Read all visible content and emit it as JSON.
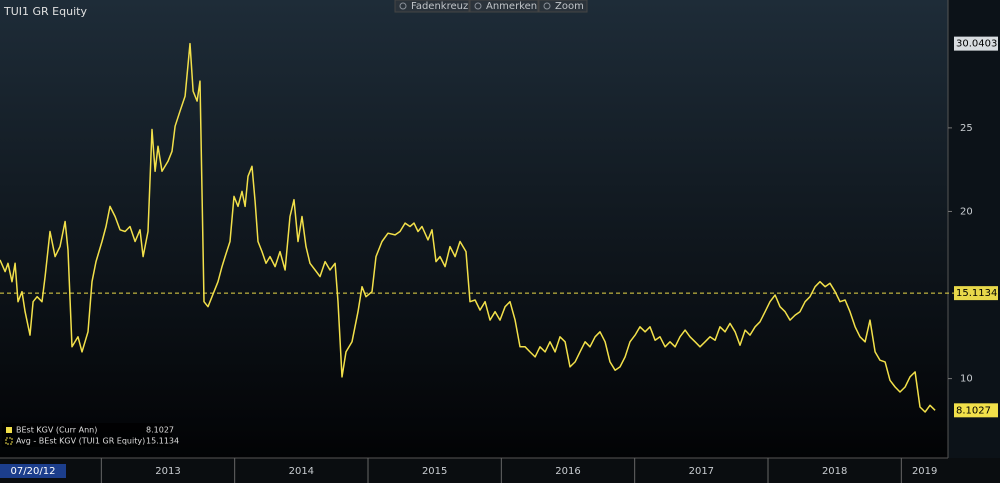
{
  "chart_data": {
    "type": "line",
    "title": "TUI1 GR Equity",
    "toolbar": [
      "Fadenkreuz",
      "Anmerken",
      "Zoom"
    ],
    "start_date": "07/20/12",
    "series": [
      {
        "name": "BEst KGV (Curr Ann)",
        "color": "#f2e04a",
        "x": [
          2012.24,
          2012.278,
          2012.3,
          2012.33,
          2012.353,
          2012.375,
          2012.405,
          2012.428,
          2012.465,
          2012.488,
          2012.518,
          2012.555,
          2012.578,
          2012.615,
          2012.653,
          2012.69,
          2012.728,
          2012.75,
          2012.78,
          2012.825,
          2012.855,
          2012.9,
          2012.93,
          2012.96,
          2013.005,
          2013.035,
          2013.065,
          2013.103,
          2013.14,
          2013.178,
          2013.215,
          2013.253,
          2013.29,
          2013.313,
          2013.35,
          2013.38,
          2013.403,
          2013.425,
          2013.455,
          2013.5,
          2013.53,
          2013.553,
          2013.59,
          2013.628,
          2013.665,
          2013.688,
          2013.718,
          2013.74,
          2013.77,
          2013.8,
          2013.83,
          2013.875,
          2013.905,
          2013.928,
          2013.965,
          2013.995,
          2014.025,
          2014.055,
          2014.078,
          2014.1,
          2014.13,
          2014.153,
          2014.175,
          2014.205,
          2014.235,
          2014.265,
          2014.303,
          2014.34,
          2014.378,
          2014.415,
          2014.445,
          2014.475,
          2014.505,
          2014.535,
          2014.565,
          2014.603,
          2014.64,
          2014.678,
          2014.715,
          2014.753,
          2014.775,
          2014.805,
          2014.835,
          2014.88,
          2014.925,
          2014.955,
          2014.985,
          2015.03,
          2015.06,
          2015.105,
          2015.15,
          2015.203,
          2015.24,
          2015.278,
          2015.315,
          2015.345,
          2015.375,
          2015.405,
          2015.45,
          2015.48,
          2015.51,
          2015.54,
          2015.578,
          2015.615,
          2015.653,
          2015.69,
          2015.735,
          2015.765,
          2015.803,
          2015.84,
          2015.878,
          2015.915,
          2015.953,
          2015.99,
          2016.028,
          2016.065,
          2016.103,
          2016.14,
          2016.178,
          2016.215,
          2016.253,
          2016.29,
          2016.328,
          2016.365,
          2016.403,
          2016.44,
          2016.478,
          2016.515,
          2016.553,
          2016.59,
          2016.628,
          2016.665,
          2016.703,
          2016.74,
          2016.778,
          2016.815,
          2016.853,
          2016.89,
          2016.928,
          2016.965,
          2017.003,
          2017.04,
          2017.078,
          2017.115,
          2017.153,
          2017.19,
          2017.228,
          2017.265,
          2017.303,
          2017.34,
          2017.378,
          2017.415,
          2017.453,
          2017.49,
          2017.528,
          2017.565,
          2017.603,
          2017.64,
          2017.678,
          2017.715,
          2017.753,
          2017.79,
          2017.828,
          2017.865,
          2017.903,
          2017.94,
          2017.978,
          2018.015,
          2018.053,
          2018.09,
          2018.128,
          2018.165,
          2018.203,
          2018.24,
          2018.278,
          2018.315,
          2018.353,
          2018.39,
          2018.428,
          2018.465,
          2018.503,
          2018.54,
          2018.578,
          2018.615,
          2018.653,
          2018.69,
          2018.728,
          2018.765,
          2018.803,
          2018.84,
          2018.878,
          2018.915,
          2018.953,
          2018.99,
          2019.028,
          2019.065,
          2019.103,
          2019.14,
          2019.178,
          2019.215,
          2019.253
        ],
        "values": [
          17.1,
          16.4,
          16.9,
          15.8,
          16.9,
          14.6,
          15.2,
          14.0,
          12.6,
          14.6,
          14.9,
          14.6,
          16.1,
          18.8,
          17.3,
          17.9,
          19.4,
          17.7,
          11.9,
          12.5,
          11.6,
          12.8,
          15.8,
          17.0,
          18.2,
          19.1,
          20.3,
          19.7,
          18.9,
          18.8,
          19.1,
          18.2,
          18.9,
          17.3,
          18.8,
          24.9,
          22.4,
          23.9,
          22.4,
          23.0,
          23.6,
          25.1,
          26.0,
          26.9,
          30.0403,
          27.2,
          26.6,
          27.8,
          14.6,
          14.3,
          14.9,
          15.8,
          16.7,
          17.3,
          18.2,
          20.9,
          20.3,
          21.2,
          20.3,
          22.1,
          22.7,
          20.6,
          18.2,
          17.6,
          16.9,
          17.3,
          16.7,
          17.6,
          16.5,
          19.7,
          20.7,
          18.2,
          19.7,
          17.9,
          16.9,
          16.5,
          16.1,
          17.0,
          16.5,
          16.9,
          14.6,
          10.1,
          11.6,
          12.2,
          14.0,
          15.5,
          14.9,
          15.2,
          17.3,
          18.2,
          18.7,
          18.6,
          18.8,
          19.3,
          19.1,
          19.3,
          18.8,
          19.1,
          18.3,
          18.9,
          17.0,
          17.3,
          16.7,
          17.9,
          17.3,
          18.2,
          17.6,
          14.6,
          14.7,
          14.1,
          14.6,
          13.5,
          14.0,
          13.5,
          14.3,
          14.6,
          13.5,
          11.9,
          11.9,
          11.6,
          11.3,
          11.9,
          11.6,
          12.2,
          11.6,
          12.5,
          12.2,
          10.7,
          11.0,
          11.6,
          12.2,
          11.9,
          12.5,
          12.8,
          12.2,
          11.0,
          10.5,
          10.7,
          11.3,
          12.2,
          12.6,
          13.1,
          12.8,
          13.1,
          12.3,
          12.5,
          11.9,
          12.2,
          11.9,
          12.5,
          12.9,
          12.5,
          12.2,
          11.9,
          12.2,
          12.5,
          12.3,
          13.1,
          12.8,
          13.3,
          12.8,
          12.0,
          12.9,
          12.6,
          13.1,
          13.4,
          14.0,
          14.6,
          15.0,
          14.3,
          14.0,
          13.5,
          13.8,
          14.0,
          14.6,
          14.9,
          15.5,
          15.8,
          15.5,
          15.7,
          15.2,
          14.6,
          14.7,
          14.0,
          13.1,
          12.5,
          12.2,
          13.5,
          11.6,
          11.1,
          11.0,
          9.9,
          9.5,
          9.2,
          9.5,
          10.1,
          10.4,
          8.3,
          8.0,
          8.4,
          8.1027
        ]
      }
    ],
    "average": {
      "name": "Avg - BEst KGV (TUI1 GR Equity)",
      "value": 15.1134,
      "color": "#e8d84a"
    },
    "xlim": [
      2012.24,
      2019.35
    ],
    "xticks": [
      {
        "value": 2013,
        "label": "2013"
      },
      {
        "value": 2014,
        "label": "2014"
      },
      {
        "value": 2015,
        "label": "2015"
      },
      {
        "value": 2016,
        "label": "2016"
      },
      {
        "value": 2017,
        "label": "2017"
      },
      {
        "value": 2018,
        "label": "2018"
      },
      {
        "value": 2019,
        "label": "2019"
      }
    ],
    "ylim": [
      5.25,
      32.65
    ],
    "yticks": [
      10,
      20,
      25
    ]
  }
}
